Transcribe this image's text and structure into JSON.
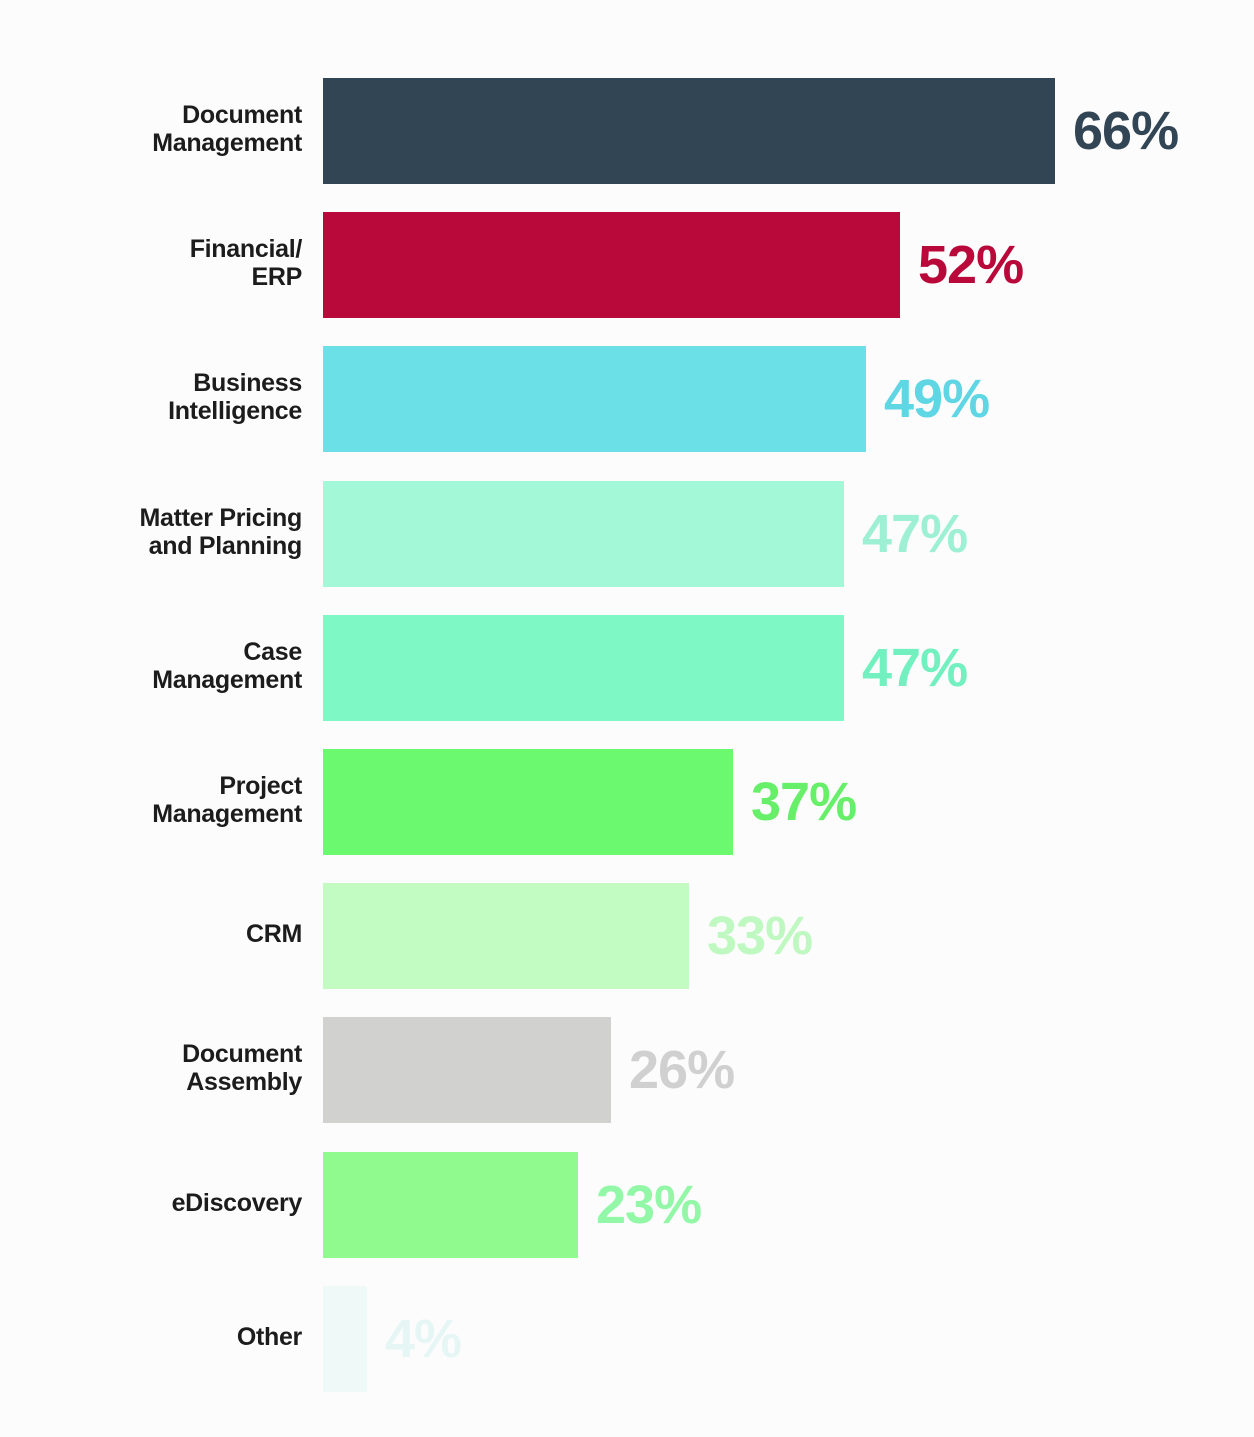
{
  "chart_data": {
    "type": "bar",
    "orientation": "horizontal",
    "categories": [
      [
        "Document",
        "Management"
      ],
      [
        "Financial/",
        "ERP"
      ],
      [
        "Business",
        "Intelligence"
      ],
      [
        "Matter Pricing",
        "and Planning"
      ],
      [
        "Case",
        "Management"
      ],
      [
        "Project",
        "Management"
      ],
      [
        "CRM"
      ],
      [
        "Document",
        "Assembly"
      ],
      [
        "eDiscovery"
      ],
      [
        "Other"
      ]
    ],
    "values": [
      66,
      52,
      49,
      47,
      47,
      37,
      33,
      26,
      23,
      4
    ],
    "value_labels": [
      "66%",
      "52%",
      "49%",
      "47%",
      "47%",
      "37%",
      "33%",
      "26%",
      "23%",
      "4%"
    ],
    "bar_colors": [
      "#324555",
      "#b8093a",
      "#6be0e6",
      "#a3f8d8",
      "#7ef8c5",
      "#6bfa6f",
      "#c3fcc2",
      "#d1d1cf",
      "#90fa8f",
      "#eef9f8"
    ],
    "label_colors": [
      "#324555",
      "#b8093a",
      "#5fd6e4",
      "#9ef0d4",
      "#73f0c0",
      "#68ef6a",
      "#bff8c0",
      "#d0d0d0",
      "#93f7a8",
      "#e6f6f5"
    ],
    "xlim": [
      0,
      66
    ],
    "grid": false,
    "legend": "none",
    "title": "",
    "xlabel": "",
    "ylabel": ""
  }
}
